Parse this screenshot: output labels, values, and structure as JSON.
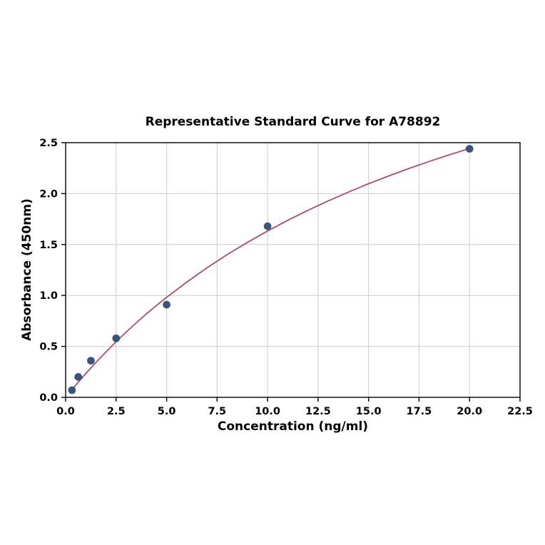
{
  "chart_data": {
    "type": "scatter",
    "title": "Representative Standard Curve for A78892",
    "xlabel": "Concentration (ng/ml)",
    "ylabel": "Absorbance (450nm)",
    "xlim": [
      0,
      22.5
    ],
    "ylim": [
      0,
      2.5
    ],
    "xtick_labels": [
      "0.0",
      "2.5",
      "5.0",
      "7.5",
      "10.0",
      "12.5",
      "15.0",
      "17.5",
      "20.0",
      "22.5"
    ],
    "ytick_labels": [
      "0.0",
      "0.5",
      "1.0",
      "1.5",
      "2.0",
      "2.5"
    ],
    "grid": true,
    "legend": "none",
    "points": {
      "x": [
        0.313,
        0.625,
        1.25,
        2.5,
        5,
        10,
        20
      ],
      "y": [
        0.07,
        0.2,
        0.36,
        0.58,
        0.91,
        1.68,
        2.44
      ]
    },
    "fit_curve": [
      [
        0.31,
        0.075
      ],
      [
        0.5,
        0.12
      ],
      [
        0.75,
        0.178
      ],
      [
        1.0,
        0.234
      ],
      [
        1.5,
        0.343
      ],
      [
        2.0,
        0.447
      ],
      [
        2.5,
        0.546
      ],
      [
        3.0,
        0.641
      ],
      [
        3.5,
        0.732
      ],
      [
        4.0,
        0.819
      ],
      [
        4.5,
        0.902
      ],
      [
        5.0,
        0.982
      ],
      [
        6.0,
        1.132
      ],
      [
        7.0,
        1.272
      ],
      [
        8.0,
        1.401
      ],
      [
        9.0,
        1.521
      ],
      [
        10.0,
        1.633
      ],
      [
        11.0,
        1.738
      ],
      [
        12.0,
        1.836
      ],
      [
        13.0,
        1.928
      ],
      [
        14.0,
        2.015
      ],
      [
        15.0,
        2.097
      ],
      [
        16.0,
        2.174
      ],
      [
        17.0,
        2.247
      ],
      [
        18.0,
        2.316
      ],
      [
        19.0,
        2.381
      ],
      [
        20.0,
        2.443
      ]
    ],
    "colors": {
      "curve": "#b04a6f",
      "points": "#36567f",
      "points_edge": "#22395494",
      "grid": "#cccccc",
      "axis": "#000000",
      "background": "#ffffff"
    }
  }
}
